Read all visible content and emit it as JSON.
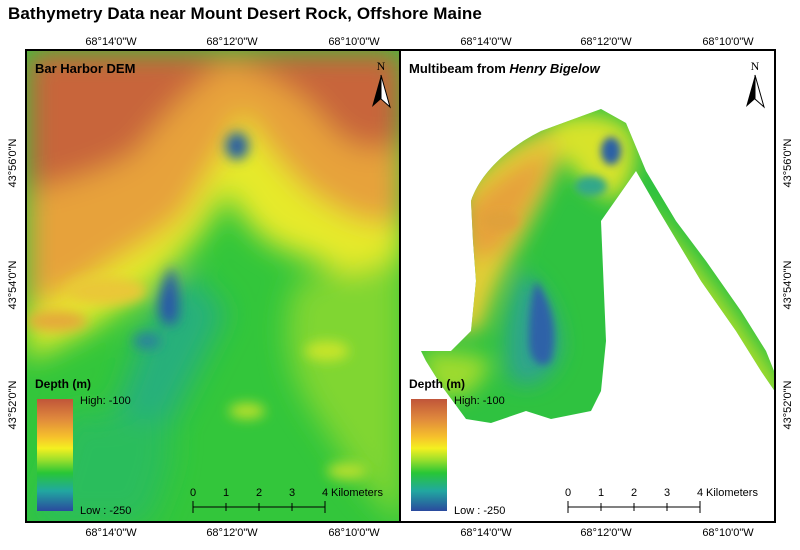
{
  "title": "Bathymetry Data near Mount Desert Rock, Offshore Maine",
  "longitude_labels": [
    "68°14'0\"W",
    "68°12'0\"W",
    "68°10'0\"W"
  ],
  "latitude_labels": [
    "43°56'0\"N",
    "43°54'0\"N",
    "43°52'0\"N"
  ],
  "panels": [
    {
      "label": "Bar Harbor DEM",
      "north_letter": "N",
      "legend": {
        "title": "Depth (m)",
        "high": "High: -100",
        "low": "Low : -250"
      },
      "scale": {
        "ticks": [
          "0",
          "1",
          "2",
          "3",
          "4"
        ],
        "unit": "Kilometers"
      }
    },
    {
      "label_prefix": "Multibeam from ",
      "label_italic": "Henry Bigelow",
      "north_letter": "N",
      "legend": {
        "title": "Depth (m)",
        "high": "High: -100",
        "low": "Low : -250"
      },
      "scale": {
        "ticks": [
          "0",
          "1",
          "2",
          "3",
          "4"
        ],
        "unit": "Kilometers"
      }
    }
  ],
  "colors": {
    "shallow": "#c0553a",
    "mid_high": "#f6c12c",
    "mid": "#28c636",
    "deep": "#2a4a9e"
  }
}
